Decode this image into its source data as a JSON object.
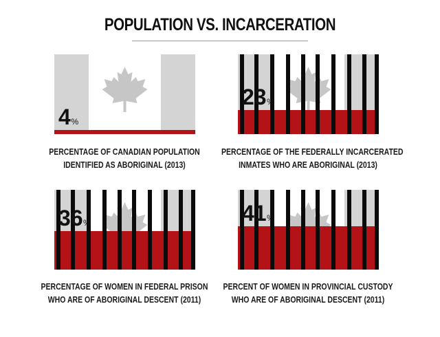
{
  "title": "POPULATION VS. INCARCERATION",
  "colors": {
    "grey": "#d4d4d4",
    "red": "#b31316",
    "leaf": "#c6c6c6",
    "bars": "#0b0b0b"
  },
  "chart_data": [
    {
      "type": "bar",
      "value": 4,
      "unit": "%",
      "caption": [
        "PERCENTAGE OF CANADIAN POPULATION",
        "IDENTIFIED AS ABORIGINAL (2013)"
      ],
      "bars": false
    },
    {
      "type": "bar",
      "value": 23,
      "unit": "%",
      "caption": [
        "PERCENTAGE OF THE FEDERALLY INCARCERATED",
        "INMATES WHO ARE ABORIGINAL (2013)"
      ],
      "bars": true
    },
    {
      "type": "bar",
      "value": 36,
      "unit": "%",
      "caption": [
        "PERCENTAGE OF WOMEN IN FEDERAL PRISON",
        "WHO ARE OF ABORIGINAL DESCENT (2011)"
      ],
      "bars": true
    },
    {
      "type": "bar",
      "value": 41,
      "unit": "%",
      "caption": [
        "PERCENT OF WOMEN IN PROVINCIAL CUSTODY",
        "WHO ARE OF ABORIGINAL DESCENT (2011)"
      ],
      "bars": true
    }
  ]
}
